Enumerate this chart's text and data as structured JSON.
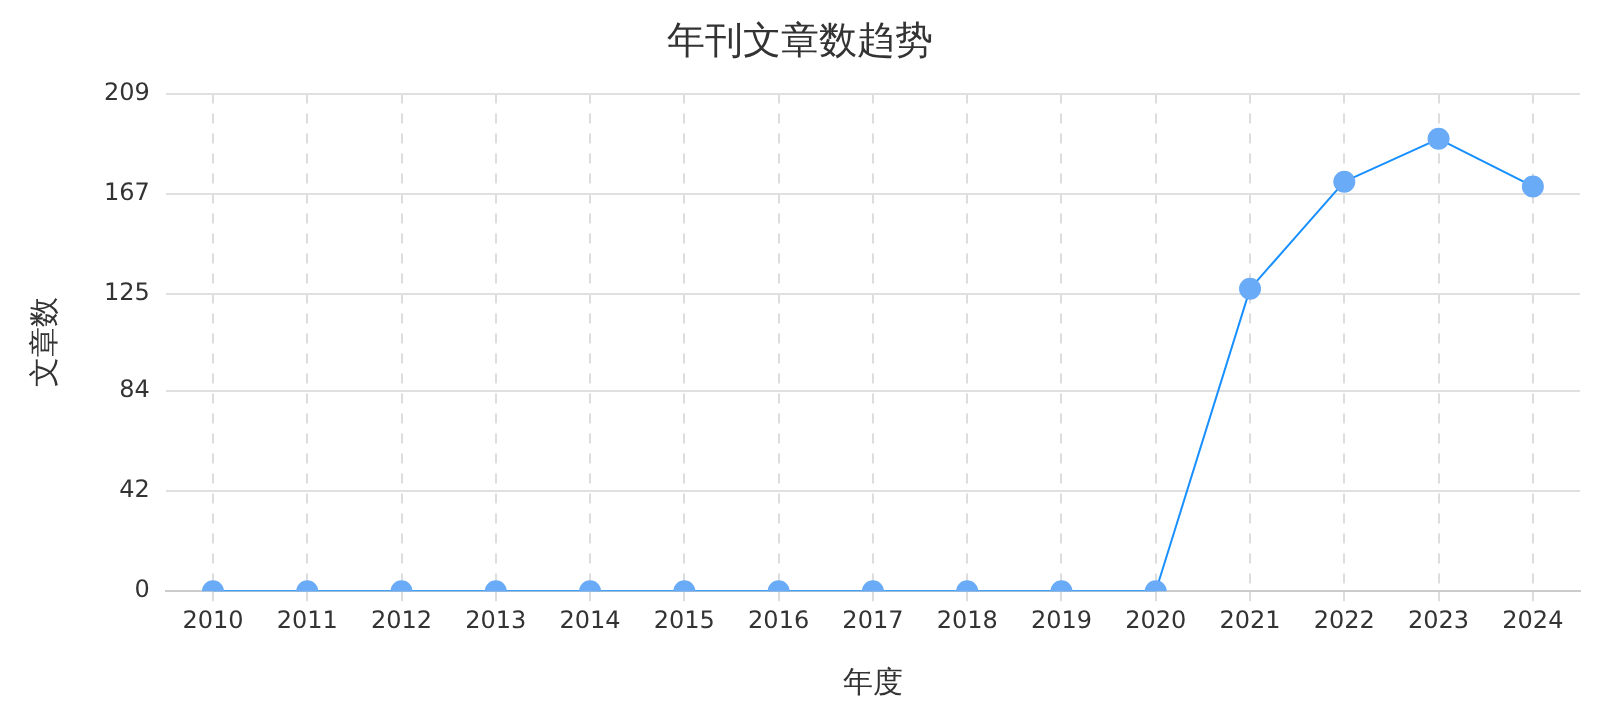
{
  "chart_data": {
    "type": "line",
    "title": "年刊文章数趋势",
    "xlabel": "年度",
    "ylabel": "文章数",
    "categories": [
      "2010",
      "2011",
      "2012",
      "2013",
      "2014",
      "2015",
      "2016",
      "2017",
      "2018",
      "2019",
      "2020",
      "2021",
      "2022",
      "2023",
      "2024"
    ],
    "series": [
      {
        "color": "#1890ff",
        "values": [
          0,
          0,
          0,
          0,
          0,
          0,
          0,
          0,
          0,
          0,
          0,
          127,
          172,
          190,
          170
        ]
      }
    ],
    "ylim": [
      0,
      209
    ],
    "yticks": [
      0,
      42,
      84,
      125,
      167,
      209
    ],
    "grid": true,
    "legend": false,
    "marker": "circle",
    "line_style": "solid"
  }
}
